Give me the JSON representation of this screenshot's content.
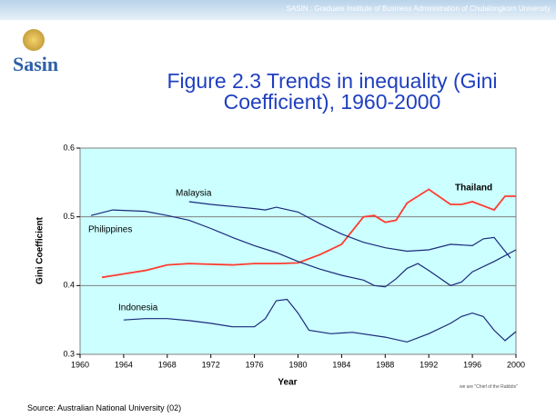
{
  "header": {
    "banner": "SASIN : Graduate Institute of Business Administration of Chulalongkorn University",
    "logo": "Sasin"
  },
  "footer": {
    "source": "Source: Australian National University (02)",
    "slogan": "we are \"Chief of the Rabbits\""
  },
  "chart_data": {
    "type": "line",
    "title": "Figure 2.3 Trends in inequality (Gini Coefficient), 1960-2000",
    "x_label": "Year",
    "y_label": "Gini Coefficient",
    "xlim": [
      1960,
      2000
    ],
    "xticks": [
      1960,
      1964,
      1968,
      1972,
      1976,
      1980,
      1984,
      1988,
      1992,
      1996,
      2000
    ],
    "ylim": [
      0.3,
      0.6
    ],
    "yticks": [
      0.3,
      0.4,
      0.5,
      0.6
    ],
    "grid": true,
    "series": [
      {
        "name": "Thailand",
        "color": "#ff3b30",
        "x": [
          1962,
          1964,
          1966,
          1968,
          1970,
          1972,
          1974,
          1976,
          1978,
          1980,
          1982,
          1984,
          1986,
          1987,
          1988,
          1989,
          1990,
          1992,
          1994,
          1995,
          1996,
          1998,
          1999,
          2000
        ],
        "values": [
          0.412,
          0.417,
          0.422,
          0.43,
          0.432,
          0.431,
          0.43,
          0.432,
          0.432,
          0.433,
          0.445,
          0.46,
          0.5,
          0.502,
          0.492,
          0.495,
          0.52,
          0.54,
          0.518,
          0.518,
          0.522,
          0.51,
          0.53,
          0.53
        ]
      },
      {
        "name": "Malaysia",
        "color": "#1a2a7a",
        "x": [
          1970,
          1972,
          1974,
          1976,
          1977,
          1978,
          1980,
          1982,
          1984,
          1986,
          1988,
          1990,
          1992,
          1994,
          1996,
          1997,
          1998,
          1999.5
        ],
        "values": [
          0.522,
          0.518,
          0.515,
          0.512,
          0.51,
          0.514,
          0.507,
          0.49,
          0.475,
          0.463,
          0.455,
          0.45,
          0.452,
          0.46,
          0.458,
          0.468,
          0.47,
          0.44
        ]
      },
      {
        "name": "Philippines",
        "color": "#1a2a7a",
        "x": [
          1961,
          1963,
          1966,
          1968,
          1970,
          1972,
          1974,
          1976,
          1978,
          1980,
          1982,
          1984,
          1986,
          1987,
          1988,
          1989,
          1990,
          1991,
          1992,
          1994,
          1995,
          1996,
          1998,
          2000
        ],
        "values": [
          0.502,
          0.51,
          0.508,
          0.502,
          0.495,
          0.483,
          0.47,
          0.458,
          0.448,
          0.435,
          0.424,
          0.415,
          0.408,
          0.4,
          0.398,
          0.41,
          0.425,
          0.432,
          0.422,
          0.4,
          0.405,
          0.42,
          0.435,
          0.452
        ]
      },
      {
        "name": "Indonesia",
        "color": "#1a2a7a",
        "x": [
          1964,
          1966,
          1968,
          1970,
          1972,
          1974,
          1976,
          1977,
          1978,
          1979,
          1980,
          1981,
          1983,
          1985,
          1988,
          1990,
          1992,
          1994,
          1995,
          1996,
          1997,
          1998,
          1999,
          2000
        ],
        "values": [
          0.35,
          0.352,
          0.352,
          0.349,
          0.345,
          0.34,
          0.34,
          0.352,
          0.378,
          0.38,
          0.36,
          0.335,
          0.33,
          0.332,
          0.325,
          0.318,
          0.33,
          0.345,
          0.355,
          0.36,
          0.355,
          0.335,
          0.32,
          0.333
        ]
      }
    ]
  }
}
